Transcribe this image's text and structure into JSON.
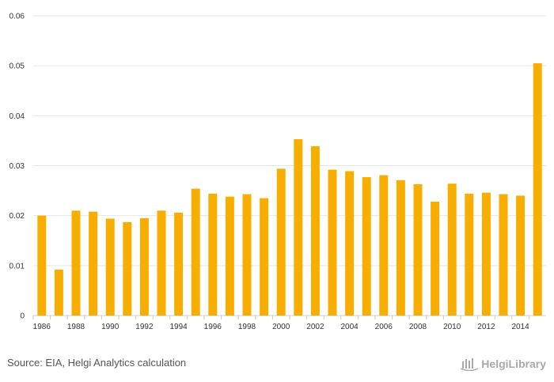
{
  "chart_data": {
    "type": "bar",
    "title": "",
    "xlabel": "",
    "ylabel": "",
    "ylim": [
      0,
      0.06
    ],
    "y_ticks": [
      "0",
      "0.01",
      "0.02",
      "0.03",
      "0.04",
      "0.05",
      "0.06"
    ],
    "y_tick_values": [
      0,
      0.01,
      0.02,
      0.03,
      0.04,
      0.05,
      0.06
    ],
    "categories": [
      "1986",
      "1987",
      "1988",
      "1989",
      "1990",
      "1991",
      "1992",
      "1993",
      "1994",
      "1995",
      "1996",
      "1997",
      "1998",
      "1999",
      "2000",
      "2001",
      "2002",
      "2003",
      "2004",
      "2005",
      "2006",
      "2007",
      "2008",
      "2009",
      "2010",
      "2011",
      "2012",
      "2013",
      "2014",
      "2015"
    ],
    "x_tick_labels": [
      "1986",
      "1988",
      "1990",
      "1992",
      "1994",
      "1996",
      "1998",
      "2000",
      "2002",
      "2004",
      "2006",
      "2008",
      "2010",
      "2012",
      "2014"
    ],
    "values": [
      0.02,
      0.0092,
      0.021,
      0.0208,
      0.0194,
      0.0187,
      0.0195,
      0.021,
      0.0206,
      0.0254,
      0.0244,
      0.0238,
      0.0243,
      0.0235,
      0.0294,
      0.0353,
      0.0339,
      0.0292,
      0.0289,
      0.0277,
      0.0281,
      0.0271,
      0.0263,
      0.0228,
      0.0264,
      0.0244,
      0.0246,
      0.0243,
      0.024,
      0.0505
    ],
    "bar_color": "#f7ae00",
    "grid_color": "#e6e6e6",
    "grid": true
  },
  "footer": {
    "source": "Source: EIA, Helgi Analytics calculation",
    "logo_text": "HelgiLibrary",
    "logo_icon": "helgi-library-logo-icon"
  }
}
